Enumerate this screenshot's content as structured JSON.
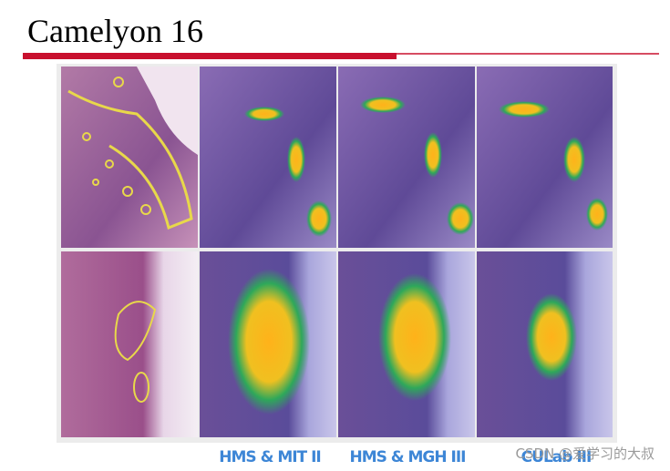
{
  "header": {
    "title": "Camelyon 16"
  },
  "captions": [
    "HMS & MIT II",
    "HMS & MGH III",
    "CULab III"
  ],
  "watermark": "CSDN @爱学习的大叔"
}
